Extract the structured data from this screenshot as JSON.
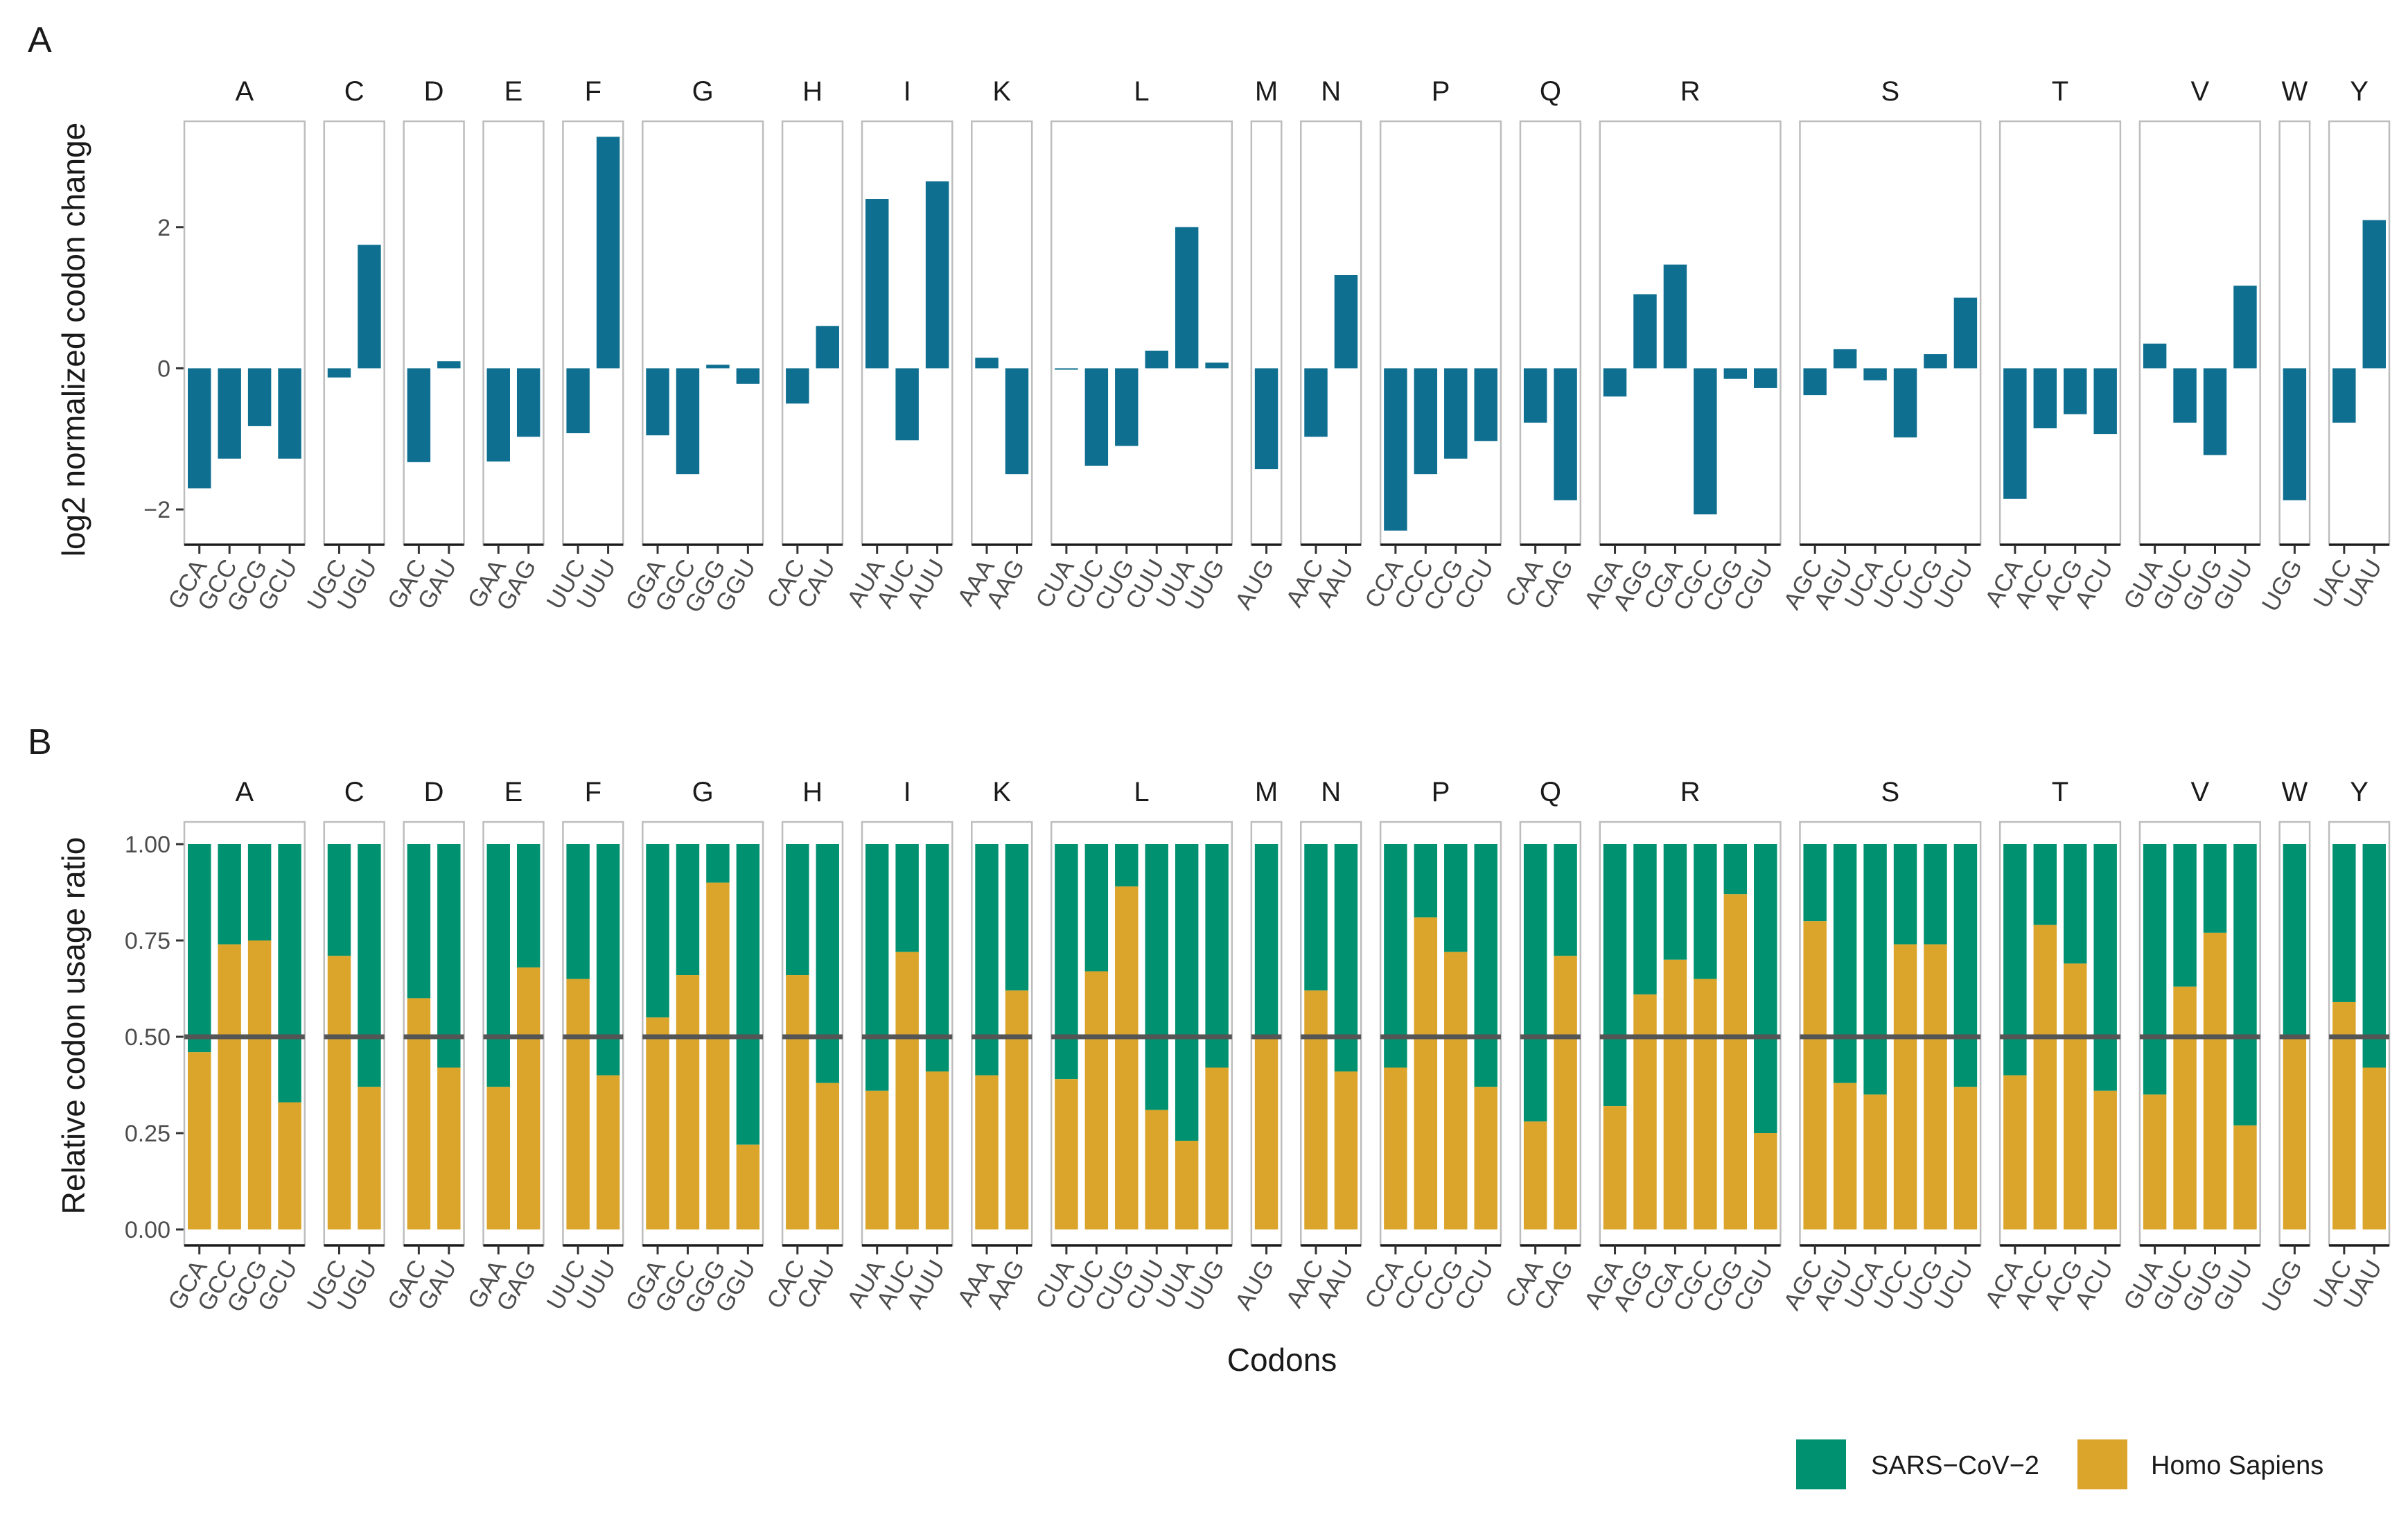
{
  "figure": {
    "panel_a_letter": "A",
    "panel_b_letter": "B",
    "x_axis_title": "Codons"
  },
  "colors": {
    "change_bar": "#0e6f91",
    "sars": "#009270",
    "homo": "#dba42a",
    "reference_line": "#555555"
  },
  "legend": {
    "items": [
      {
        "label": "SARS−CoV−2",
        "color": "#009270"
      },
      {
        "label": "Homo Sapiens",
        "color": "#dba42a"
      }
    ]
  },
  "chart_data": [
    {
      "panel": "A",
      "type": "bar",
      "title": "",
      "xlabel": "",
      "ylabel": "log2 normalized codon change",
      "ylim": [
        -2.5,
        3.5
      ],
      "yticks": [
        -2,
        0,
        2
      ],
      "ytick_labels": [
        "−2",
        "0",
        "2"
      ],
      "facets": [
        {
          "amino_acid": "A",
          "codons": [
            "GCA",
            "GCC",
            "GCG",
            "GCU"
          ],
          "values": [
            -1.7,
            -1.28,
            -0.82,
            -1.28
          ]
        },
        {
          "amino_acid": "C",
          "codons": [
            "UGC",
            "UGU"
          ],
          "values": [
            -0.13,
            1.75
          ]
        },
        {
          "amino_acid": "D",
          "codons": [
            "GAC",
            "GAU"
          ],
          "values": [
            -1.33,
            0.1
          ]
        },
        {
          "amino_acid": "E",
          "codons": [
            "GAA",
            "GAG"
          ],
          "values": [
            -1.32,
            -0.97
          ]
        },
        {
          "amino_acid": "F",
          "codons": [
            "UUC",
            "UUU"
          ],
          "values": [
            -0.92,
            3.28
          ]
        },
        {
          "amino_acid": "G",
          "codons": [
            "GGA",
            "GGC",
            "GGG",
            "GGU"
          ],
          "values": [
            -0.95,
            -1.5,
            0.05,
            -0.22
          ]
        },
        {
          "amino_acid": "H",
          "codons": [
            "CAC",
            "CAU"
          ],
          "values": [
            -0.5,
            0.6
          ]
        },
        {
          "amino_acid": "I",
          "codons": [
            "AUA",
            "AUC",
            "AUU"
          ],
          "values": [
            2.4,
            -1.02,
            2.65
          ]
        },
        {
          "amino_acid": "K",
          "codons": [
            "AAA",
            "AAG"
          ],
          "values": [
            0.15,
            -1.5
          ]
        },
        {
          "amino_acid": "L",
          "codons": [
            "CUA",
            "CUC",
            "CUG",
            "CUU",
            "UUA",
            "UUG"
          ],
          "values": [
            -0.02,
            -1.38,
            -1.1,
            0.25,
            2.0,
            0.08
          ]
        },
        {
          "amino_acid": "M",
          "codons": [
            "AUG"
          ],
          "values": [
            -1.43
          ]
        },
        {
          "amino_acid": "N",
          "codons": [
            "AAC",
            "AAU"
          ],
          "values": [
            -0.97,
            1.32
          ]
        },
        {
          "amino_acid": "P",
          "codons": [
            "CCA",
            "CCC",
            "CCG",
            "CCU"
          ],
          "values": [
            -2.3,
            -1.5,
            -1.28,
            -1.03
          ]
        },
        {
          "amino_acid": "Q",
          "codons": [
            "CAA",
            "CAG"
          ],
          "values": [
            -0.77,
            -1.87
          ]
        },
        {
          "amino_acid": "R",
          "codons": [
            "AGA",
            "AGG",
            "CGA",
            "CGC",
            "CGG",
            "CGU"
          ],
          "values": [
            -0.4,
            1.05,
            1.47,
            -2.07,
            -0.15,
            -0.28
          ]
        },
        {
          "amino_acid": "S",
          "codons": [
            "AGC",
            "AGU",
            "UCA",
            "UCC",
            "UCG",
            "UCU"
          ],
          "values": [
            -0.38,
            0.27,
            -0.17,
            -0.98,
            0.2,
            1.0
          ]
        },
        {
          "amino_acid": "T",
          "codons": [
            "ACA",
            "ACC",
            "ACG",
            "ACU"
          ],
          "values": [
            -1.85,
            -0.85,
            -0.65,
            -0.93
          ]
        },
        {
          "amino_acid": "V",
          "codons": [
            "GUA",
            "GUC",
            "GUG",
            "GUU"
          ],
          "values": [
            0.35,
            -0.77,
            -1.23,
            1.17
          ]
        },
        {
          "amino_acid": "W",
          "codons": [
            "UGG"
          ],
          "values": [
            -1.87
          ]
        },
        {
          "amino_acid": "Y",
          "codons": [
            "UAC",
            "UAU"
          ],
          "values": [
            -0.77,
            2.1
          ]
        }
      ]
    },
    {
      "panel": "B",
      "type": "bar",
      "stacked": true,
      "title": "",
      "xlabel": "Codons",
      "ylabel": "Relative codon usage ratio",
      "ylim": [
        0,
        1
      ],
      "yticks": [
        0,
        0.25,
        0.5,
        0.75,
        1
      ],
      "ytick_labels": [
        "0.00",
        "0.25",
        "0.50",
        "0.75",
        "1.00"
      ],
      "reference_line": 0.5,
      "series": [
        {
          "name": "Homo Sapiens",
          "role": "bottom"
        },
        {
          "name": "SARS−CoV−2",
          "role": "top",
          "note": "equals 1 minus Homo Sapiens share"
        }
      ],
      "facets": [
        {
          "amino_acid": "A",
          "codons": [
            "GCA",
            "GCC",
            "GCG",
            "GCU"
          ],
          "homo_sapiens": [
            0.46,
            0.74,
            0.75,
            0.33
          ]
        },
        {
          "amino_acid": "C",
          "codons": [
            "UGC",
            "UGU"
          ],
          "homo_sapiens": [
            0.71,
            0.37
          ]
        },
        {
          "amino_acid": "D",
          "codons": [
            "GAC",
            "GAU"
          ],
          "homo_sapiens": [
            0.6,
            0.42
          ]
        },
        {
          "amino_acid": "E",
          "codons": [
            "GAA",
            "GAG"
          ],
          "homo_sapiens": [
            0.37,
            0.68
          ]
        },
        {
          "amino_acid": "F",
          "codons": [
            "UUC",
            "UUU"
          ],
          "homo_sapiens": [
            0.65,
            0.4
          ]
        },
        {
          "amino_acid": "G",
          "codons": [
            "GGA",
            "GGC",
            "GGG",
            "GGU"
          ],
          "homo_sapiens": [
            0.55,
            0.66,
            0.9,
            0.22
          ]
        },
        {
          "amino_acid": "H",
          "codons": [
            "CAC",
            "CAU"
          ],
          "homo_sapiens": [
            0.66,
            0.38
          ]
        },
        {
          "amino_acid": "I",
          "codons": [
            "AUA",
            "AUC",
            "AUU"
          ],
          "homo_sapiens": [
            0.36,
            0.72,
            0.41
          ]
        },
        {
          "amino_acid": "K",
          "codons": [
            "AAA",
            "AAG"
          ],
          "homo_sapiens": [
            0.4,
            0.62
          ]
        },
        {
          "amino_acid": "L",
          "codons": [
            "CUA",
            "CUC",
            "CUG",
            "CUU",
            "UUA",
            "UUG"
          ],
          "homo_sapiens": [
            0.39,
            0.67,
            0.89,
            0.31,
            0.23,
            0.42
          ]
        },
        {
          "amino_acid": "M",
          "codons": [
            "AUG"
          ],
          "homo_sapiens": [
            0.5
          ]
        },
        {
          "amino_acid": "N",
          "codons": [
            "AAC",
            "AAU"
          ],
          "homo_sapiens": [
            0.62,
            0.41
          ]
        },
        {
          "amino_acid": "P",
          "codons": [
            "CCA",
            "CCC",
            "CCG",
            "CCU"
          ],
          "homo_sapiens": [
            0.42,
            0.81,
            0.72,
            0.37
          ]
        },
        {
          "amino_acid": "Q",
          "codons": [
            "CAA",
            "CAG"
          ],
          "homo_sapiens": [
            0.28,
            0.71
          ]
        },
        {
          "amino_acid": "R",
          "codons": [
            "AGA",
            "AGG",
            "CGA",
            "CGC",
            "CGG",
            "CGU"
          ],
          "homo_sapiens": [
            0.32,
            0.61,
            0.7,
            0.65,
            0.87,
            0.25
          ]
        },
        {
          "amino_acid": "S",
          "codons": [
            "AGC",
            "AGU",
            "UCA",
            "UCC",
            "UCG",
            "UCU"
          ],
          "homo_sapiens": [
            0.8,
            0.38,
            0.35,
            0.74,
            0.74,
            0.37
          ]
        },
        {
          "amino_acid": "T",
          "codons": [
            "ACA",
            "ACC",
            "ACG",
            "ACU"
          ],
          "homo_sapiens": [
            0.4,
            0.79,
            0.69,
            0.36
          ]
        },
        {
          "amino_acid": "V",
          "codons": [
            "GUA",
            "GUC",
            "GUG",
            "GUU"
          ],
          "homo_sapiens": [
            0.35,
            0.63,
            0.77,
            0.27
          ]
        },
        {
          "amino_acid": "W",
          "codons": [
            "UGG"
          ],
          "homo_sapiens": [
            0.5
          ]
        },
        {
          "amino_acid": "Y",
          "codons": [
            "UAC",
            "UAU"
          ],
          "homo_sapiens": [
            0.59,
            0.42
          ]
        }
      ]
    }
  ]
}
